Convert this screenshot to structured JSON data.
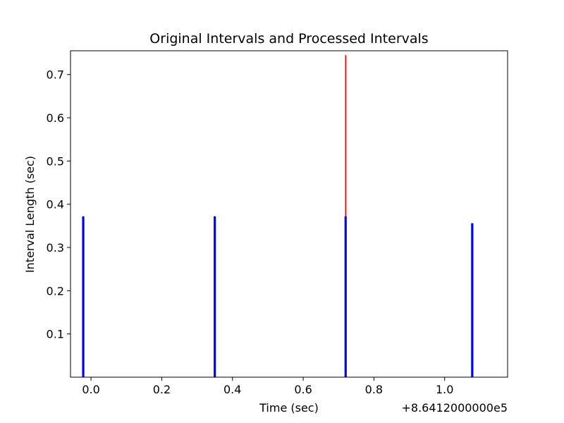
{
  "chart_data": {
    "type": "bar",
    "title": "Original Intervals and Processed Intervals",
    "xlabel": "Time (sec)",
    "ylabel": "Interval Length (sec)",
    "x_offset_label": "+8.6412000000e5",
    "xlim": [
      -0.058,
      1.178
    ],
    "ylim": [
      0.0,
      0.755
    ],
    "xticks": [
      0.0,
      0.2,
      0.4,
      0.6,
      0.8,
      1.0
    ],
    "xtick_labels": [
      "0.0",
      "0.2",
      "0.4",
      "0.6",
      "0.8",
      "1.0"
    ],
    "yticks": [
      0.1,
      0.2,
      0.3,
      0.4,
      0.5,
      0.6,
      0.7
    ],
    "ytick_labels": [
      "0.1",
      "0.2",
      "0.3",
      "0.4",
      "0.5",
      "0.6",
      "0.7"
    ],
    "grid": false,
    "series": [
      {
        "color": "#ff0000",
        "points": [
          {
            "x": -0.022,
            "y": 0.372
          },
          {
            "x": 0.35,
            "y": 0.372
          },
          {
            "x": 0.72,
            "y": 0.745
          },
          {
            "x": 1.078,
            "y": 0.356
          }
        ]
      },
      {
        "color": "#0000ff",
        "points": [
          {
            "x": -0.022,
            "y": 0.372
          },
          {
            "x": 0.35,
            "y": 0.372
          },
          {
            "x": 0.72,
            "y": 0.372
          },
          {
            "x": 1.078,
            "y": 0.356
          }
        ]
      }
    ]
  }
}
